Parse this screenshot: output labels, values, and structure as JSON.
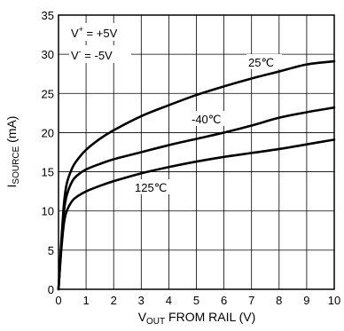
{
  "chart_data": {
    "type": "line",
    "xlabel": {
      "main": "V",
      "sub": "OUT",
      "rest": " FROM RAIL (V)"
    },
    "ylabel": {
      "main": "I",
      "sub": "SOURCE",
      "rest": " (mA)"
    },
    "xlim": [
      0,
      10
    ],
    "ylim": [
      0,
      35
    ],
    "xticks": [
      "0",
      "1",
      "2",
      "3",
      "4",
      "5",
      "6",
      "7",
      "8",
      "9",
      "10"
    ],
    "yticks": [
      "0",
      "5",
      "10",
      "15",
      "20",
      "25",
      "30",
      "35"
    ],
    "grid": true,
    "annotations": [
      {
        "base": "V",
        "sup": "+",
        "rest": " = +5V"
      },
      {
        "base": "V",
        "sup": "-",
        "rest": " = -5V"
      }
    ],
    "series": [
      {
        "name": "25℃",
        "x": [
          0,
          0.1,
          0.2,
          0.3,
          0.5,
          0.7,
          1,
          1.5,
          2,
          3,
          4,
          5,
          6,
          7,
          8,
          9,
          10
        ],
        "y": [
          0,
          6,
          11,
          13.5,
          15.5,
          16.6,
          17.8,
          19.2,
          20.3,
          22.1,
          23.5,
          24.8,
          25.9,
          26.9,
          27.8,
          28.7,
          29.1
        ]
      },
      {
        "name": "-40℃",
        "x": [
          0,
          0.1,
          0.2,
          0.3,
          0.5,
          0.7,
          1,
          1.5,
          2,
          3,
          4,
          5,
          6,
          7,
          8,
          9,
          10
        ],
        "y": [
          0,
          5.5,
          10,
          12,
          13.8,
          14.6,
          15.3,
          16.0,
          16.6,
          17.5,
          18.4,
          19.2,
          20.0,
          20.9,
          21.9,
          22.6,
          23.2
        ]
      },
      {
        "name": "125℃",
        "x": [
          0,
          0.1,
          0.2,
          0.3,
          0.5,
          0.7,
          1,
          1.5,
          2,
          3,
          4,
          5,
          6,
          7,
          8,
          9,
          10
        ],
        "y": [
          0,
          5,
          8.5,
          10,
          11.3,
          11.9,
          12.5,
          13.2,
          13.8,
          14.8,
          15.6,
          16.3,
          16.9,
          17.4,
          17.9,
          18.5,
          19.1
        ]
      }
    ]
  }
}
